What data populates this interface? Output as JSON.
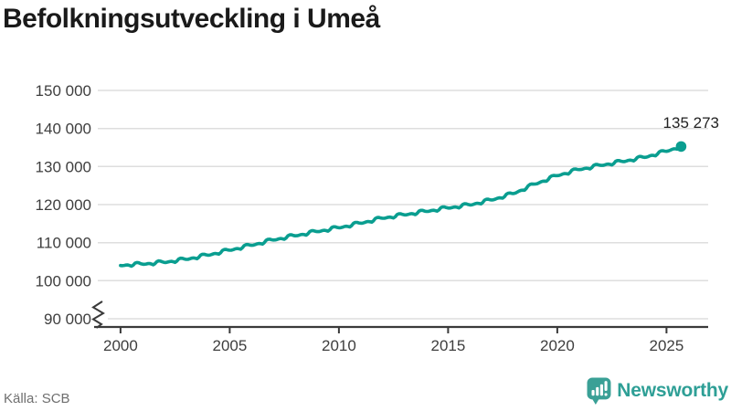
{
  "header": {
    "title": "Befolkningsutveckling i Umeå"
  },
  "footer": {
    "source": "Källa: SCB",
    "brand": "Newsworthy",
    "brand_color": "#2e9f96"
  },
  "chart_data": {
    "type": "line",
    "title": "Befolkningsutveckling i Umeå",
    "xlabel": "",
    "ylabel": "",
    "grid": "horizontal",
    "legend": "none",
    "line_color": "#0a9e90",
    "xlim": [
      1999,
      2026.9
    ],
    "ylim_displayed": [
      90000,
      150000
    ],
    "axis_break_below": 90000,
    "yticks": [
      {
        "value": 150000,
        "label": "150 000"
      },
      {
        "value": 140000,
        "label": "140 000"
      },
      {
        "value": 130000,
        "label": "130 000"
      },
      {
        "value": 120000,
        "label": "120 000"
      },
      {
        "value": 110000,
        "label": "110 000"
      },
      {
        "value": 100000,
        "label": "100 000"
      },
      {
        "value": 90000,
        "label": "90 000"
      }
    ],
    "xticks": [
      {
        "value": 2000,
        "label": "2000"
      },
      {
        "value": 2005,
        "label": "2005"
      },
      {
        "value": 2010,
        "label": "2010"
      },
      {
        "value": 2015,
        "label": "2015"
      },
      {
        "value": 2020,
        "label": "2020"
      },
      {
        "value": 2025,
        "label": "2025"
      }
    ],
    "last_point": {
      "x": 2025.67,
      "value": 135273,
      "label": "135 273"
    },
    "series": [
      {
        "points": [
          [
            2000,
            104000
          ],
          [
            2001,
            104350
          ],
          [
            2002,
            104800
          ],
          [
            2003,
            105600
          ],
          [
            2004,
            106700
          ],
          [
            2005,
            108000
          ],
          [
            2006,
            109300
          ],
          [
            2007,
            110700
          ],
          [
            2008,
            111800
          ],
          [
            2009,
            112900
          ],
          [
            2010,
            113900
          ],
          [
            2011,
            115100
          ],
          [
            2012,
            116400
          ],
          [
            2013,
            117300
          ],
          [
            2014,
            118200
          ],
          [
            2015,
            119100
          ],
          [
            2016,
            119900
          ],
          [
            2017,
            121200
          ],
          [
            2018,
            122900
          ],
          [
            2019,
            125400
          ],
          [
            2020,
            127600
          ],
          [
            2021,
            129200
          ],
          [
            2022,
            130300
          ],
          [
            2023,
            131300
          ],
          [
            2024,
            132400
          ],
          [
            2025,
            134000
          ],
          [
            2025.67,
            135273
          ]
        ],
        "monthly_seasonal_offsets": [
          0,
          -80,
          -40,
          30,
          20,
          -150,
          -380,
          -120,
          380,
          520,
          430,
          180
        ]
      }
    ]
  }
}
